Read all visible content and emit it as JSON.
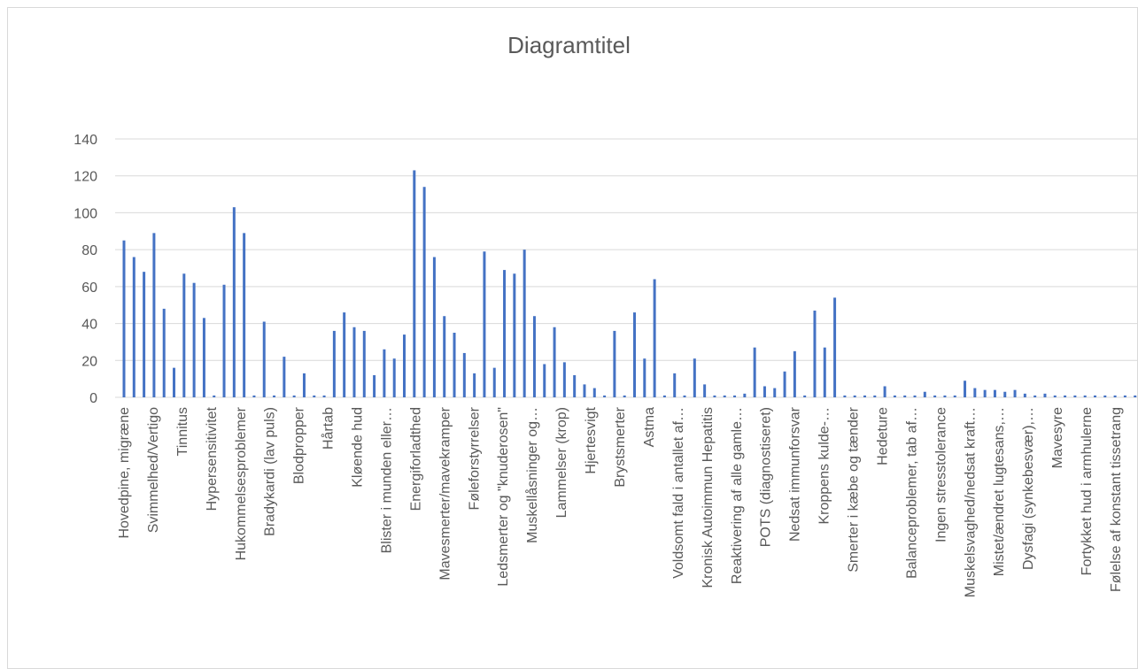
{
  "chart_data": {
    "type": "bar",
    "title": "Diagramtitel",
    "xlabel": "",
    "ylabel": "",
    "ylim": [
      0,
      140
    ],
    "yticks": [
      0,
      20,
      40,
      60,
      80,
      100,
      120,
      140
    ],
    "grid": true,
    "legend": "none",
    "bar_color": "#4472C4",
    "grid_color": "#d9d9d9",
    "values": [
      85,
      76,
      68,
      89,
      48,
      16,
      67,
      62,
      43,
      1,
      61,
      103,
      89,
      1,
      41,
      1,
      22,
      1,
      13,
      1,
      1,
      36,
      46,
      38,
      36,
      12,
      26,
      21,
      34,
      123,
      114,
      76,
      44,
      35,
      24,
      13,
      79,
      16,
      69,
      67,
      80,
      44,
      18,
      38,
      19,
      12,
      7,
      5,
      1,
      36,
      1,
      46,
      21,
      64,
      1,
      13,
      1,
      21,
      7,
      1,
      1,
      1,
      2,
      27,
      6,
      5,
      14,
      25,
      1,
      47,
      27,
      54,
      1,
      1,
      1,
      1,
      6,
      1,
      1,
      1,
      3,
      1,
      1,
      1,
      9,
      5,
      4,
      4,
      3,
      4,
      2,
      1,
      2,
      1,
      1,
      1,
      1,
      1,
      1,
      1,
      1,
      1
    ],
    "tick_labels": [
      "Hovedpine, migræne",
      "Svimmelhed/Vertigo",
      "Tinnitus",
      "Hypersensitivitet",
      "Hukommelsesproblemer",
      "Bradykardi (lav puls)",
      "Blodpropper",
      "Hårtab",
      "Kløende hud",
      "Blister i munden eller…",
      "Energiforladthed",
      "Mavesmerter/mavekramper",
      "Føleforstyrrelser",
      "Ledsmerter og \"knuderosen\"",
      "Muskellåsninger og…",
      "Lammelser (krop)",
      "Hjertesvigt",
      "Brystsmerter",
      "Astma",
      "Voldsomt fald i antallet af…",
      "Kronisk Autoimmun Hepatitis",
      "Reaktivering af alle gamle…",
      "POTS (diagnostiseret)",
      "Nedsat immunforsvar",
      "Kroppens kulde-…",
      "Smerter i kæbe og tænder",
      "Hedeture",
      "Balanceproblemer, tab af…",
      "Ingen stresstolerance",
      "Muskelsvaghed/nedsat kraft…",
      "Mistet/ændret lugtesans,…",
      "Dysfagi (synkebesvær),…",
      "Mavesyre",
      "Fortykket hud i armhulerne",
      "Følelse af konstant tissetrang"
    ]
  }
}
